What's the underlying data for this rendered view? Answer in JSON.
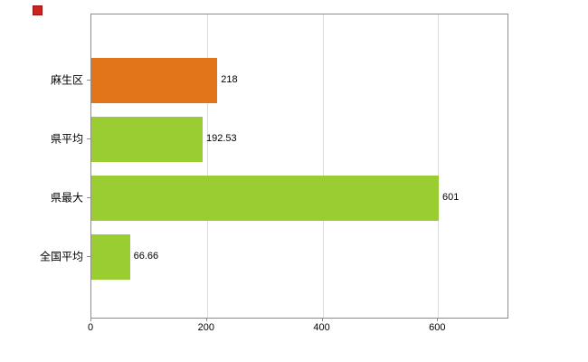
{
  "window": {
    "icon_color": "#cc2222"
  },
  "chart_data": {
    "type": "bar",
    "orientation": "horizontal",
    "title": "",
    "categories": [
      "麻生区",
      "県平均",
      "県最大",
      "全国平均"
    ],
    "values": [
      218,
      192.53,
      601,
      66.66
    ],
    "value_labels": [
      "218",
      "192.53",
      "601",
      "66.66"
    ],
    "bar_colors": [
      "#e2751a",
      "#9acd32",
      "#9acd32",
      "#9acd32"
    ],
    "xlim": [
      0,
      720
    ],
    "xticks": [
      0,
      200,
      400,
      600
    ],
    "xtick_labels": [
      "0",
      "200",
      "400",
      "600"
    ],
    "grid": true,
    "grid_axis": "x",
    "legend": null,
    "axis_color": "#8c8c8c",
    "grid_color": "#dcdcdc"
  }
}
